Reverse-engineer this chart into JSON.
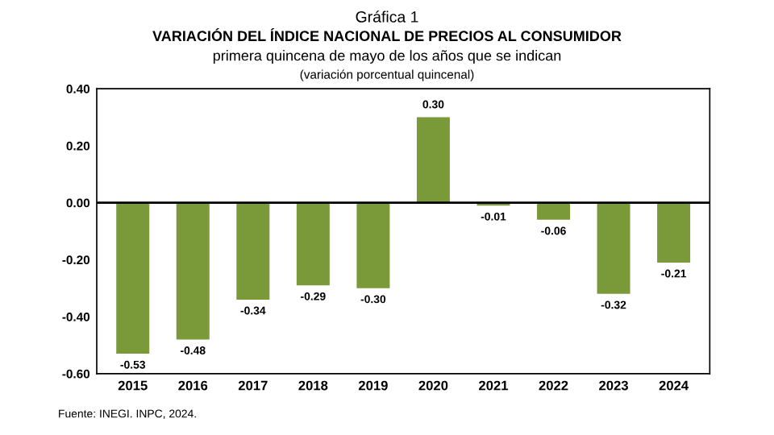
{
  "chart_data": {
    "type": "bar",
    "title": "VARIACIÓN DEL ÍNDICE NACIONAL DE PRECIOS AL CONSUMIDOR",
    "subtitle": "primera quincena de mayo de los años que se indican",
    "annotations": [
      "Gráfica 1",
      "(variación porcentual quincenal)",
      "Fuente: INEGI. INPC, 2024."
    ],
    "categories": [
      "2015",
      "2016",
      "2017",
      "2018",
      "2019",
      "2020",
      "2021",
      "2022",
      "2023",
      "2024"
    ],
    "values": [
      -0.53,
      -0.48,
      -0.34,
      -0.29,
      -0.3,
      0.3,
      -0.01,
      -0.06,
      -0.32,
      -0.21
    ],
    "value_labels": [
      "-0.53",
      "-0.48",
      "-0.34",
      "-0.29",
      "-0.30",
      "0.30",
      "-0.01",
      "-0.06",
      "-0.32",
      "-0.21"
    ],
    "color": "#7a9a3a",
    "ylim": [
      -0.6,
      0.4
    ],
    "yticks": [
      {
        "value": -0.6,
        "label": "-0.60"
      },
      {
        "value": -0.4,
        "label": "-0.40"
      },
      {
        "value": -0.2,
        "label": "-0.20"
      },
      {
        "value": 0,
        "label": "0.00"
      },
      {
        "value": 0.2,
        "label": "0.20"
      },
      {
        "value": 0.4,
        "label": "0.40"
      }
    ],
    "ref_lines": [
      {
        "axis": "y",
        "value": 0,
        "label": null,
        "color": "#000000"
      }
    ],
    "grid": false,
    "legend": false
  }
}
